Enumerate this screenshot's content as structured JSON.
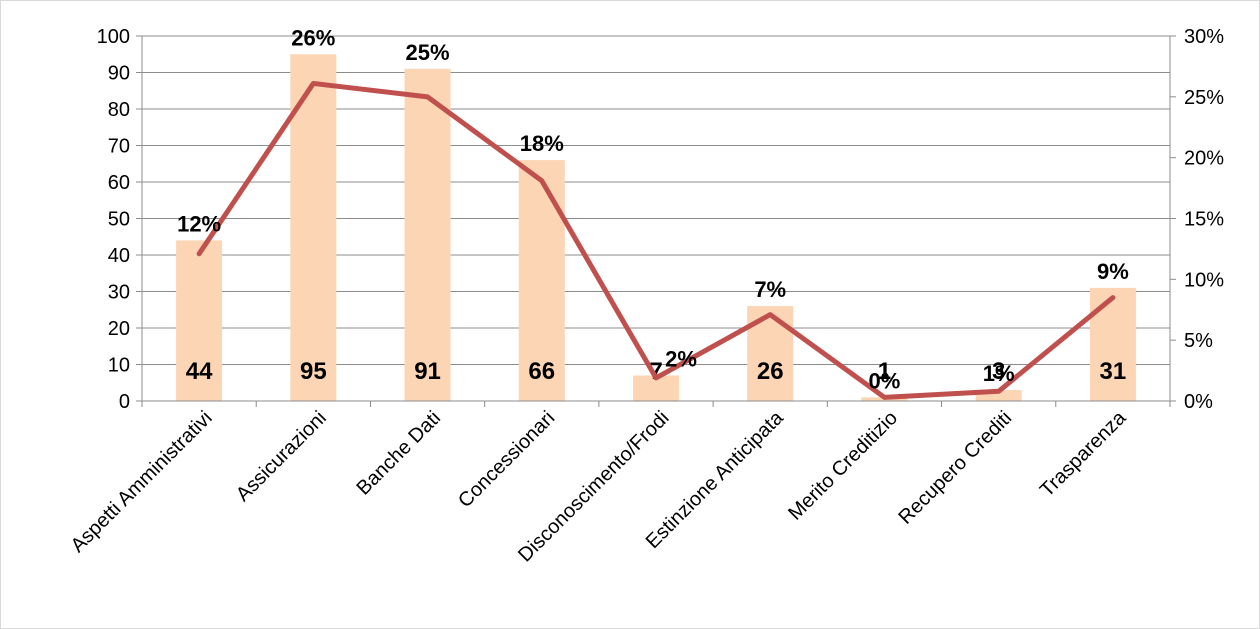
{
  "chart_data": {
    "type": "bar",
    "categories": [
      "Aspetti Amministrativi",
      "Assicurazioni",
      "Banche Dati",
      "Concessionari",
      "Disconoscimento/Frodi",
      "Estinzione Anticipata",
      "Merito Creditizio",
      "Recupero Crediti",
      "Trasparenza"
    ],
    "series": [
      {
        "values": [
          44,
          95,
          91,
          66,
          7,
          26,
          1,
          3,
          31
        ],
        "data_labels": [
          "44",
          "95",
          "91",
          "66",
          "7",
          "26",
          "1",
          "3",
          "31"
        ],
        "axis": "left",
        "mark": "bar",
        "color": "#fcd5b5"
      },
      {
        "values": [
          12.1,
          26.1,
          25.0,
          18.1,
          1.9,
          7.1,
          0.3,
          0.8,
          8.5
        ],
        "data_labels": [
          "12%",
          "26%",
          "25%",
          "18%",
          "2%",
          "7%",
          "0%",
          "1%",
          "9%"
        ],
        "axis": "right",
        "mark": "line",
        "color": "#c0504d"
      }
    ],
    "y_left": {
      "range": [
        0,
        100
      ],
      "ticks": [
        "0",
        "10",
        "20",
        "30",
        "40",
        "50",
        "60",
        "70",
        "80",
        "90",
        "100"
      ]
    },
    "y_right": {
      "range": [
        0,
        30
      ],
      "ticks": [
        "0%",
        "5%",
        "10%",
        "15%",
        "20%",
        "25%",
        "30%"
      ]
    },
    "grid": true,
    "legend": "none",
    "gridline_color": "#8c8c8c",
    "background": "#ffffff"
  }
}
